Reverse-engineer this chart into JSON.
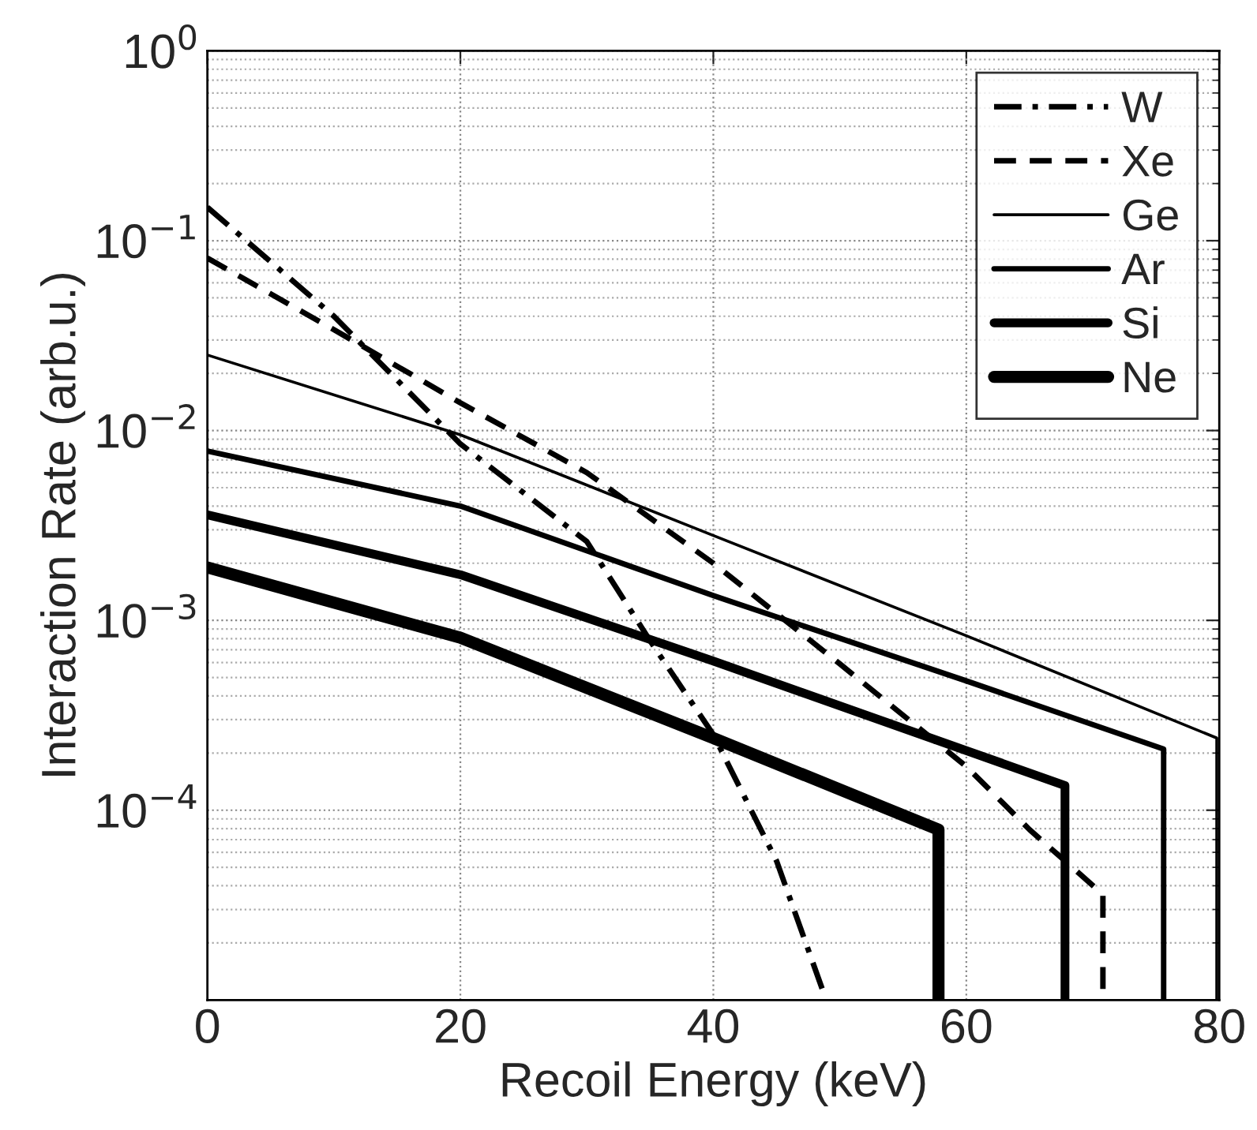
{
  "chart_data": {
    "type": "line",
    "xlabel": "Recoil Energy (keV)",
    "ylabel": "Interaction Rate (arb.u.)",
    "log": "y",
    "xlim": [
      0,
      80
    ],
    "xticks": [
      0,
      20,
      40,
      60,
      80
    ],
    "ylim": [
      1e-05,
      1
    ],
    "yticks": [
      {
        "value": 0.0001,
        "label": "10$^{−4}$"
      },
      {
        "value": 0.001,
        "label": "10$^{−3}$"
      },
      {
        "value": 0.01,
        "label": "10$^{−2}$"
      },
      {
        "value": 0.1,
        "label": "10$^{−1}$"
      },
      {
        "value": 1,
        "label": "10$^{0}$"
      }
    ],
    "grid": true,
    "legend": "top right",
    "series": [
      {
        "name": "W",
        "color": "#000000",
        "line_style": "dashdot",
        "x": [
          0,
          10,
          20,
          30,
          35,
          40,
          45,
          48.7
        ],
        "values": [
          0.15,
          0.04,
          0.0085,
          0.0026,
          0.00078,
          0.00025,
          5.4e-05,
          1.1e-05
        ]
      },
      {
        "name": "Xe",
        "color": "#000000",
        "line_style": "dashed",
        "x": [
          0,
          10,
          20,
          30,
          40,
          50,
          60,
          65,
          70.8,
          70.8
        ],
        "values": [
          0.081,
          0.034,
          0.014,
          0.006,
          0.002,
          0.00059,
          0.00017,
          7.9e-05,
          3.6e-05,
          1e-05
        ]
      },
      {
        "name": "Ge",
        "color": "#000000",
        "line_style": "solid",
        "x": [
          0,
          20,
          40,
          60,
          79.8,
          79.8
        ],
        "values": [
          0.025,
          0.0095,
          0.0028,
          0.00083,
          0.00024,
          1e-05
        ]
      },
      {
        "name": "Ar",
        "color": "#000000",
        "line_style": "solid",
        "x": [
          0,
          20,
          40,
          60,
          75.6,
          75.6
        ],
        "values": [
          0.0078,
          0.004,
          0.00135,
          0.00048,
          0.00021,
          1e-05
        ]
      },
      {
        "name": "Si",
        "color": "#000000",
        "line_style": "solid",
        "x": [
          0,
          20,
          40,
          60,
          67.8,
          67.8
        ],
        "values": [
          0.0036,
          0.00174,
          0.00061,
          0.000206,
          0.000135,
          1e-05
        ]
      },
      {
        "name": "Ne",
        "color": "#000000",
        "line_style": "solid",
        "x": [
          0,
          20,
          40,
          57.8,
          57.8
        ],
        "values": [
          0.0019,
          0.00081,
          0.00024,
          7.9e-05,
          1e-05
        ]
      }
    ]
  }
}
